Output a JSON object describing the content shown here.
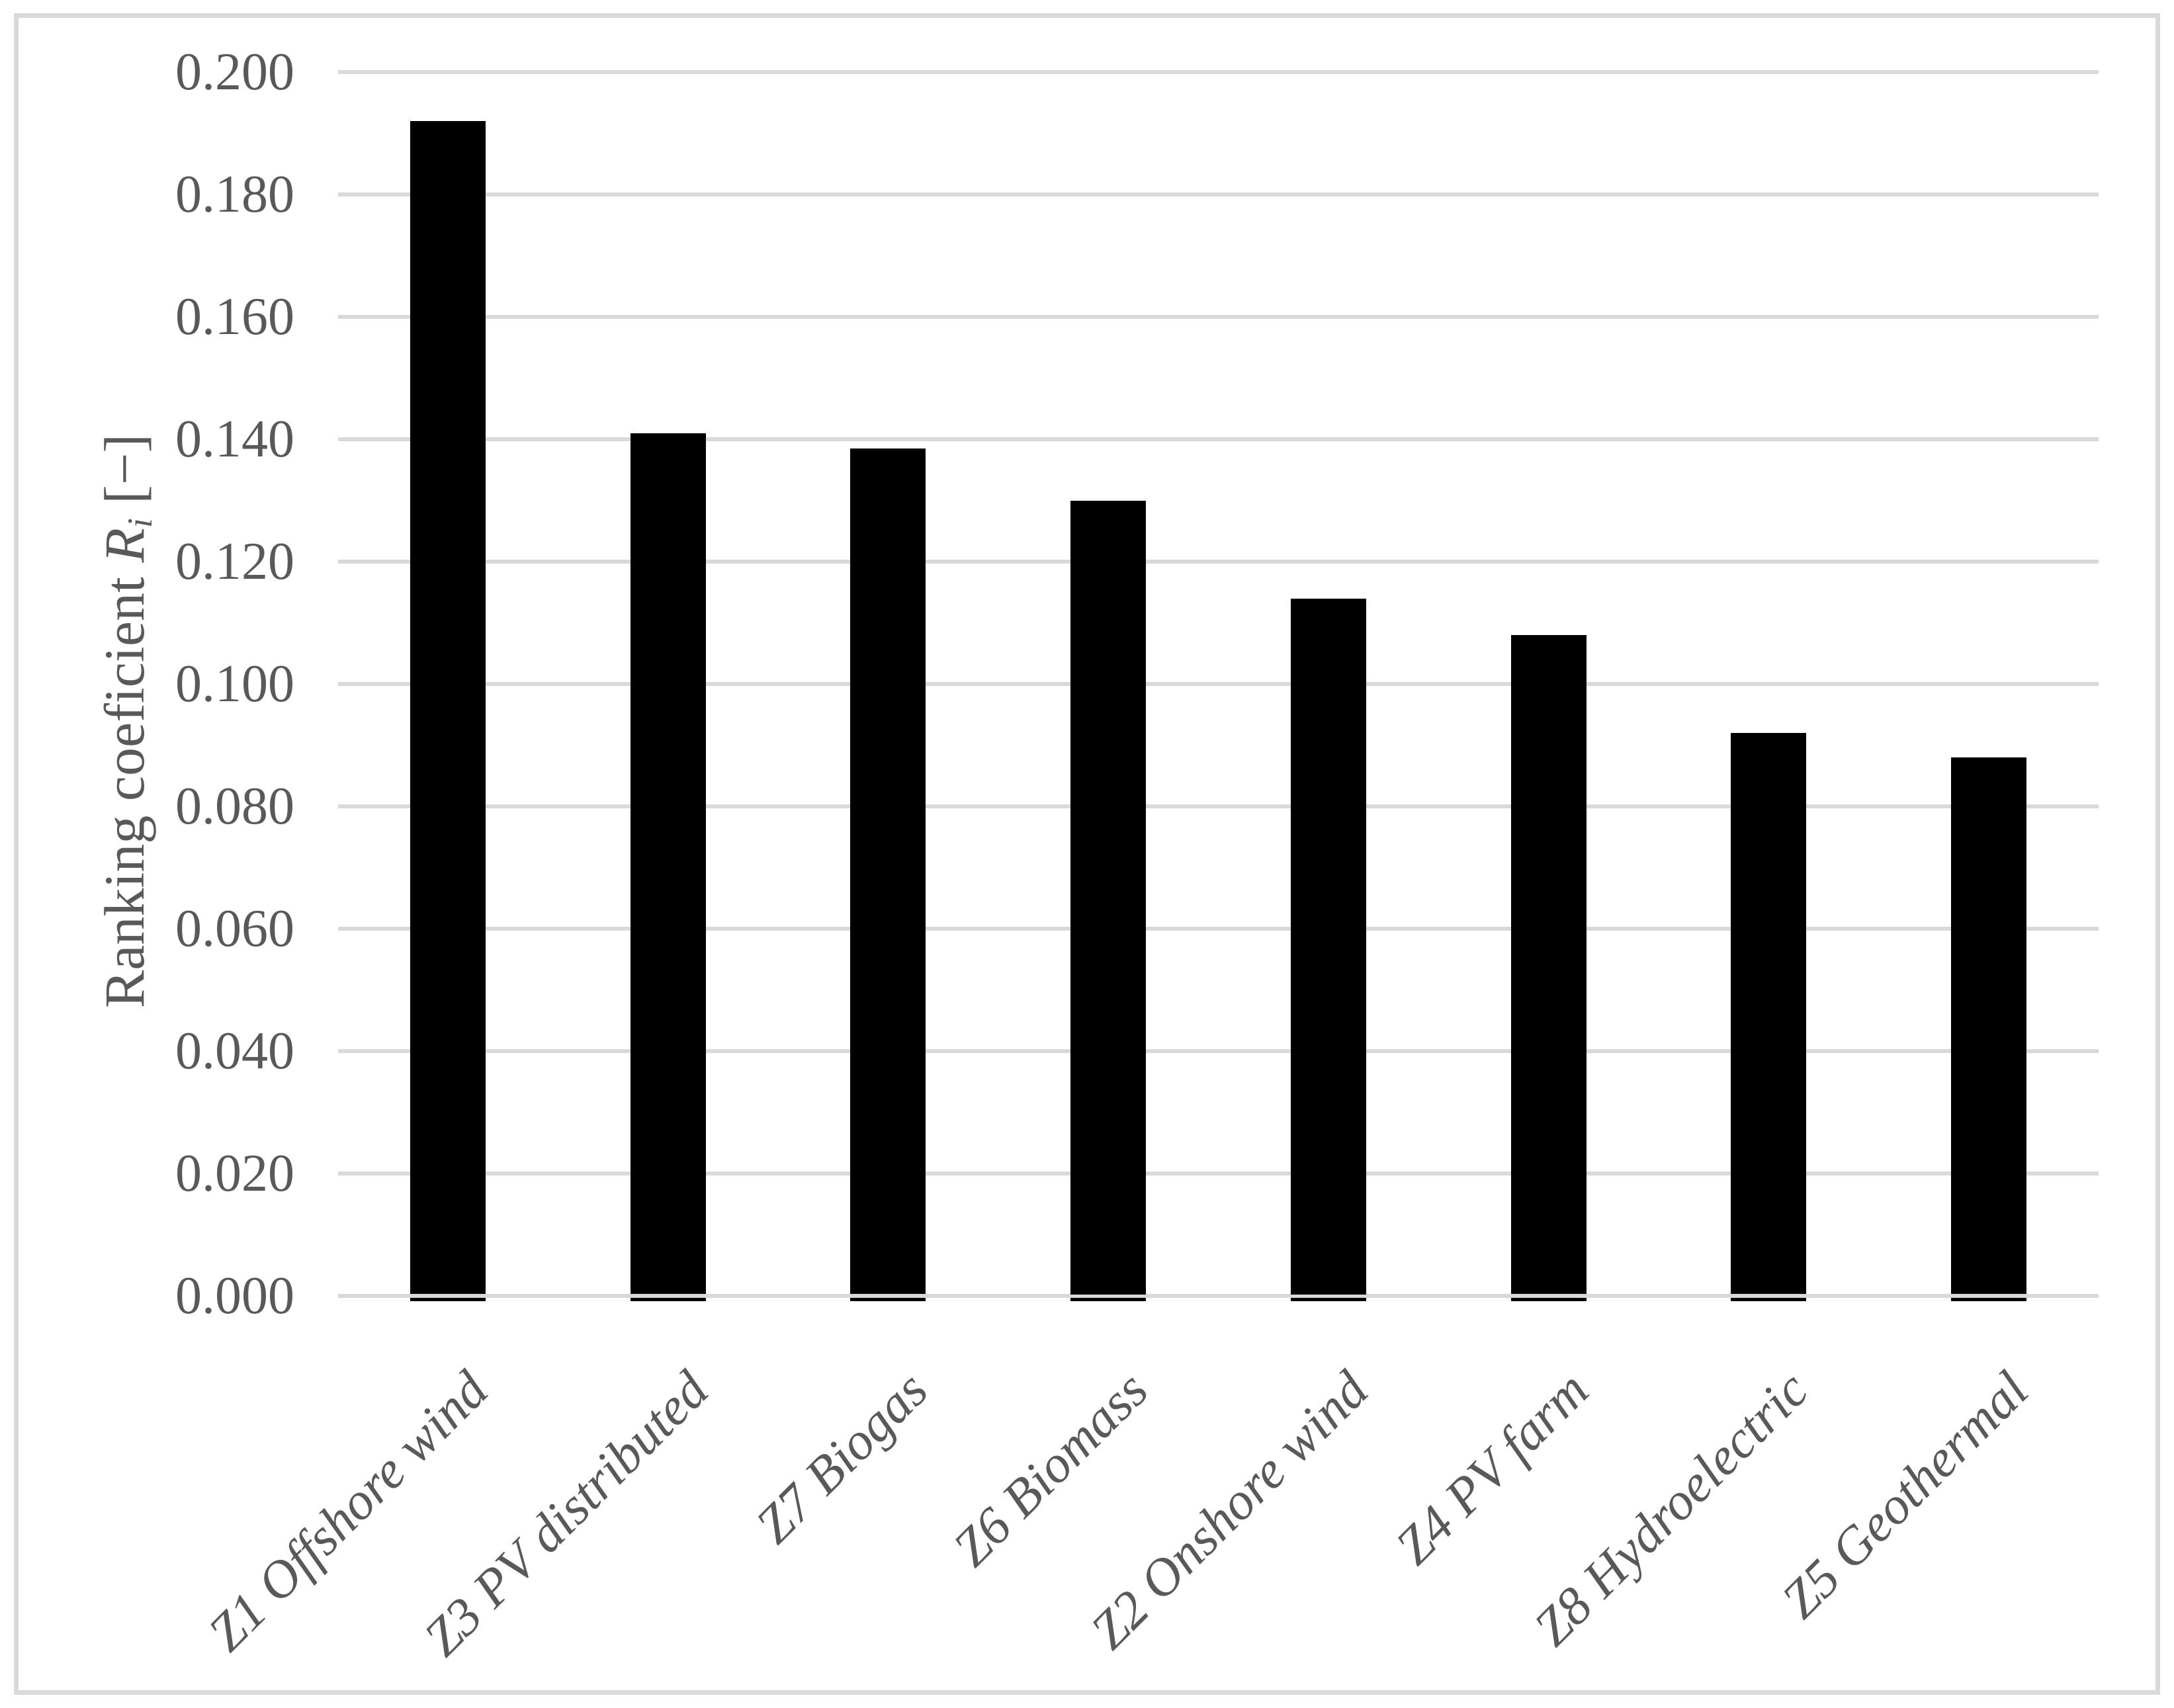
{
  "chart_data": {
    "type": "bar",
    "title": "",
    "categories": [
      "Z1 Offshore wind",
      "Z3 PV distributed",
      "Z7 Biogas",
      "Z6 Biomass",
      "Z2 Onshore wind",
      "Z4 PV farm",
      "Z8 Hydroelectric",
      "Z5 Geothermal"
    ],
    "values": [
      0.192,
      0.141,
      0.1385,
      0.13,
      0.114,
      0.108,
      0.092,
      0.088
    ],
    "xlabel": "",
    "ylabel": "Ranking coeficient Rᵢ [−]",
    "ylabel_parts": {
      "prefix": "Ranking coeficient ",
      "symbol": "R",
      "subscript": "i",
      "suffix": " [−]"
    },
    "ylim": [
      0.0,
      0.2
    ],
    "ytick_step": 0.02,
    "ytick_labels": [
      "0.000",
      "0.020",
      "0.040",
      "0.060",
      "0.080",
      "0.100",
      "0.120",
      "0.140",
      "0.160",
      "0.180",
      "0.200"
    ],
    "grid": true,
    "legend": "none",
    "bar_color": "#000000",
    "gridline_color": "#d9d9d9",
    "axis_label_color": "#595959",
    "border_color": "#d9d9d9",
    "background_color": "#ffffff"
  }
}
